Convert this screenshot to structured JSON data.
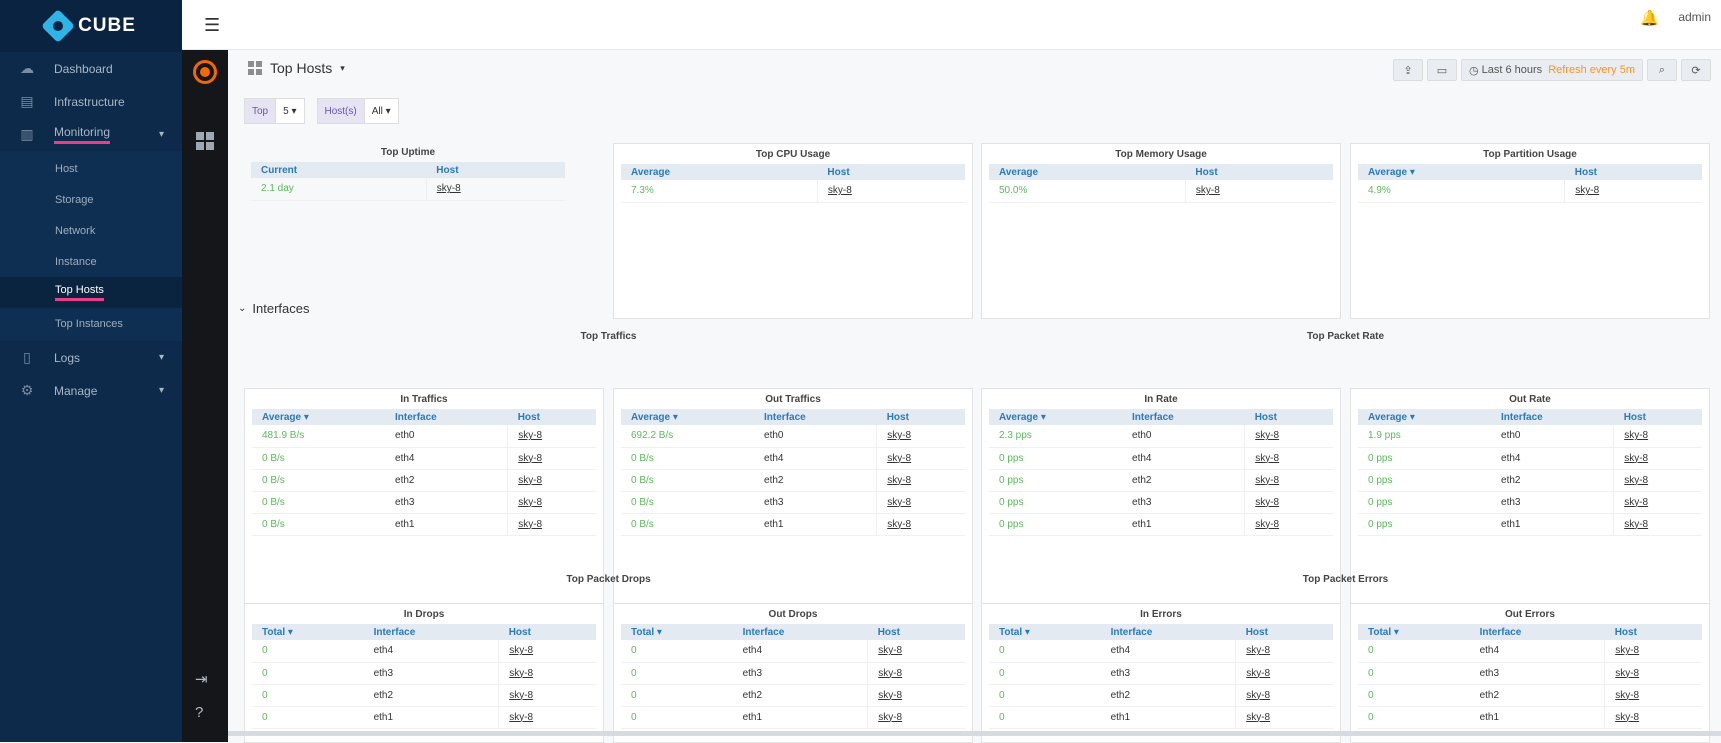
{
  "brand": {
    "name": "CUBE"
  },
  "sidebar": {
    "items": [
      {
        "label": "Dashboard",
        "icon": "cloud-icon"
      },
      {
        "label": "Infrastructure",
        "icon": "server-icon"
      },
      {
        "label": "Monitoring",
        "icon": "chart-icon"
      }
    ],
    "monitoring_sub": [
      "Host",
      "Storage",
      "Network",
      "Instance",
      "Top Hosts",
      "Top Instances"
    ],
    "bottom_items": [
      {
        "label": "Logs",
        "icon": "file-icon"
      },
      {
        "label": "Manage",
        "icon": "gear-icon"
      }
    ]
  },
  "topbar": {
    "user": "admin"
  },
  "dashboard": {
    "title": "Top Hosts",
    "time_range": "Last 6 hours",
    "refresh": "Refresh every 5m"
  },
  "vars": {
    "top_label": "Top",
    "top_value": "5",
    "hosts_label": "Host(s)",
    "hosts_value": "All"
  },
  "uptime": {
    "title": "Top Uptime",
    "cols": [
      "Current",
      "Host"
    ],
    "rows": [
      [
        "2.1 day",
        "sky-8"
      ]
    ]
  },
  "cpu": {
    "title": "Top CPU Usage",
    "cols": [
      "Average",
      "Host"
    ],
    "rows": [
      [
        "7.3%",
        "sky-8"
      ]
    ]
  },
  "memory": {
    "title": "Top Memory Usage",
    "cols": [
      "Average",
      "Host"
    ],
    "rows": [
      [
        "50.0%",
        "sky-8"
      ]
    ]
  },
  "partition": {
    "title": "Top Partition Usage",
    "cols": [
      "Average ▾",
      "Host"
    ],
    "rows": [
      [
        "4.9%",
        "sky-8"
      ]
    ]
  },
  "interfaces_row": {
    "title": "Interfaces"
  },
  "groups": {
    "traffics": "Top Traffics",
    "packet_rate": "Top Packet Rate",
    "packet_drops": "Top Packet Drops",
    "packet_errors": "Top Packet Errors"
  },
  "in_traffics": {
    "title": "In Traffics",
    "cols": [
      "Average ▾",
      "Interface",
      "Host"
    ],
    "rows": [
      [
        "481.9 B/s",
        "eth0",
        "sky-8"
      ],
      [
        "0 B/s",
        "eth4",
        "sky-8"
      ],
      [
        "0 B/s",
        "eth2",
        "sky-8"
      ],
      [
        "0 B/s",
        "eth3",
        "sky-8"
      ],
      [
        "0 B/s",
        "eth1",
        "sky-8"
      ]
    ]
  },
  "out_traffics": {
    "title": "Out Traffics",
    "cols": [
      "Average ▾",
      "Interface",
      "Host"
    ],
    "rows": [
      [
        "692.2 B/s",
        "eth0",
        "sky-8"
      ],
      [
        "0 B/s",
        "eth4",
        "sky-8"
      ],
      [
        "0 B/s",
        "eth2",
        "sky-8"
      ],
      [
        "0 B/s",
        "eth3",
        "sky-8"
      ],
      [
        "0 B/s",
        "eth1",
        "sky-8"
      ]
    ]
  },
  "in_rate": {
    "title": "In Rate",
    "cols": [
      "Average ▾",
      "Interface",
      "Host"
    ],
    "rows": [
      [
        "2.3 pps",
        "eth0",
        "sky-8"
      ],
      [
        "0 pps",
        "eth4",
        "sky-8"
      ],
      [
        "0 pps",
        "eth2",
        "sky-8"
      ],
      [
        "0 pps",
        "eth3",
        "sky-8"
      ],
      [
        "0 pps",
        "eth1",
        "sky-8"
      ]
    ]
  },
  "out_rate": {
    "title": "Out Rate",
    "cols": [
      "Average ▾",
      "Interface",
      "Host"
    ],
    "rows": [
      [
        "1.9 pps",
        "eth0",
        "sky-8"
      ],
      [
        "0 pps",
        "eth4",
        "sky-8"
      ],
      [
        "0 pps",
        "eth2",
        "sky-8"
      ],
      [
        "0 pps",
        "eth3",
        "sky-8"
      ],
      [
        "0 pps",
        "eth1",
        "sky-8"
      ]
    ]
  },
  "in_drops": {
    "title": "In Drops",
    "cols": [
      "Total ▾",
      "Interface",
      "Host"
    ],
    "rows": [
      [
        "0",
        "eth4",
        "sky-8"
      ],
      [
        "0",
        "eth3",
        "sky-8"
      ],
      [
        "0",
        "eth2",
        "sky-8"
      ],
      [
        "0",
        "eth1",
        "sky-8"
      ]
    ]
  },
  "out_drops": {
    "title": "Out Drops",
    "cols": [
      "Total ▾",
      "Interface",
      "Host"
    ],
    "rows": [
      [
        "0",
        "eth4",
        "sky-8"
      ],
      [
        "0",
        "eth3",
        "sky-8"
      ],
      [
        "0",
        "eth2",
        "sky-8"
      ],
      [
        "0",
        "eth1",
        "sky-8"
      ]
    ]
  },
  "in_errors": {
    "title": "In Errors",
    "cols": [
      "Total ▾",
      "Interface",
      "Host"
    ],
    "rows": [
      [
        "0",
        "eth4",
        "sky-8"
      ],
      [
        "0",
        "eth3",
        "sky-8"
      ],
      [
        "0",
        "eth2",
        "sky-8"
      ],
      [
        "0",
        "eth1",
        "sky-8"
      ]
    ]
  },
  "out_errors": {
    "title": "Out Errors",
    "cols": [
      "Total ▾",
      "Interface",
      "Host"
    ],
    "rows": [
      [
        "0",
        "eth4",
        "sky-8"
      ],
      [
        "0",
        "eth3",
        "sky-8"
      ],
      [
        "0",
        "eth2",
        "sky-8"
      ],
      [
        "0",
        "eth1",
        "sky-8"
      ]
    ]
  }
}
